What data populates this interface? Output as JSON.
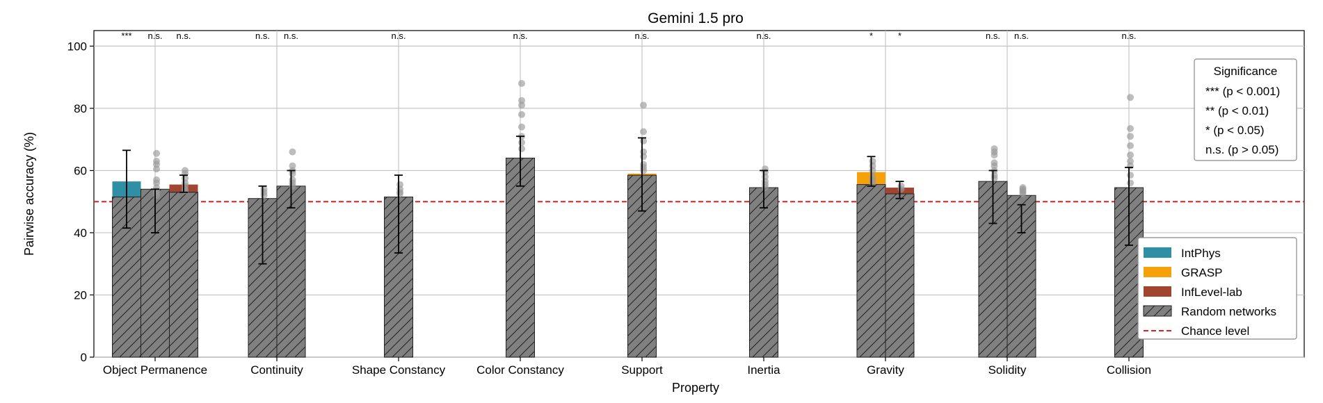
{
  "chart_data": {
    "type": "bar",
    "title": "Gemini 1.5 pro",
    "xlabel": "Property",
    "ylabel": "Pairwise accuracy (%)",
    "ylim": [
      0,
      105
    ],
    "yticks": [
      0,
      20,
      40,
      60,
      80,
      100
    ],
    "grid": true,
    "categories": [
      "Object Permanence",
      "Continuity",
      "Shape Constancy",
      "Color Constancy",
      "Support",
      "Inertia",
      "Gravity",
      "Solidity",
      "Collision"
    ],
    "chance_level": 50,
    "colors": {
      "IntPhys": "#2f8fa5",
      "GRASP": "#f5a20a",
      "InfLevel-lab": "#a0452f",
      "random": "#808080",
      "chance": "#e02020",
      "dots": "#9a9a9a",
      "grid": "#c4c4c4"
    },
    "legend": {
      "placement": "lower-right",
      "entries": [
        {
          "label": "IntPhys",
          "kind": "IntPhys"
        },
        {
          "label": "GRASP",
          "kind": "GRASP"
        },
        {
          "label": "InfLevel-lab",
          "kind": "InfLevel-lab"
        },
        {
          "label": "Random networks",
          "kind": "random"
        },
        {
          "label": "Chance level",
          "kind": "chance"
        }
      ]
    },
    "significance_box": {
      "placement": "upper-right",
      "title": "Significance",
      "lines": [
        "*** (p < 0.001)",
        "** (p < 0.01)",
        "* (p < 0.05)",
        "n.s. (p > 0.05)"
      ]
    },
    "groups": [
      {
        "category": "Object Permanence",
        "bars": [
          {
            "dataset": "IntPhys",
            "model": 56.5,
            "random_mean": 51.5,
            "err": [
              41.5,
              66.5
            ],
            "sig": "***",
            "dots": []
          },
          {
            "dataset": "IntPhys",
            "model": 54.0,
            "random_mean": 54.0,
            "err": [
              40.0,
              54.0
            ],
            "sig": "n.s.",
            "dots": [
              65.5,
              63.0,
              62.0,
              60.5,
              57.0,
              56.0,
              54.5,
              53.5,
              53.0,
              52.0
            ]
          },
          {
            "dataset": "InfLevel-lab",
            "model": 55.5,
            "random_mean": 53.0,
            "err": [
              53.0,
              58.5
            ],
            "sig": "n.s.",
            "dots": [
              60.0,
              59.0,
              57.5,
              56.0,
              55.0,
              54.0,
              53.5
            ]
          }
        ]
      },
      {
        "category": "Continuity",
        "bars": [
          {
            "dataset": "InfLevel-lab",
            "model": 51.0,
            "random_mean": 51.0,
            "err": [
              30.0,
              55.0
            ],
            "sig": "n.s.",
            "dots": [
              54.0,
              53.0,
              52.0
            ]
          },
          {
            "dataset": "InfLevel-lab",
            "model": 55.0,
            "random_mean": 55.0,
            "err": [
              48.0,
              60.0
            ],
            "sig": "n.s.",
            "dots": [
              66.0,
              61.5,
              60.0,
              59.0,
              57.0,
              56.0,
              55.0
            ]
          }
        ]
      },
      {
        "category": "Shape Constancy",
        "bars": [
          {
            "dataset": "InfLevel-lab",
            "model": 51.5,
            "random_mean": 51.5,
            "err": [
              33.5,
              58.5
            ],
            "sig": "n.s.",
            "dots": [
              55.5,
              54.0,
              53.0,
              52.5
            ]
          }
        ]
      },
      {
        "category": "Color Constancy",
        "bars": [
          {
            "dataset": "InfLevel-lab",
            "model": 64.0,
            "random_mean": 64.0,
            "err": [
              55.0,
              71.0
            ],
            "sig": "n.s.",
            "dots": [
              88.0,
              82.5,
              81.0,
              78.0,
              74.0,
              71.0,
              69.0,
              67.0
            ]
          }
        ]
      },
      {
        "category": "Support",
        "bars": [
          {
            "dataset": "GRASP",
            "model": 59.0,
            "random_mean": 58.5,
            "err": [
              47.0,
              70.5
            ],
            "sig": "n.s.",
            "dots": [
              81.0,
              72.5,
              69.5,
              66.0,
              64.5,
              62.0,
              61.0,
              60.0
            ]
          }
        ]
      },
      {
        "category": "Inertia",
        "bars": [
          {
            "dataset": "GRASP",
            "model": 54.5,
            "random_mean": 54.5,
            "err": [
              48.0,
              60.0
            ],
            "sig": "n.s.",
            "dots": [
              60.5,
              59.5,
              58.0,
              56.5,
              55.5,
              54.5
            ]
          }
        ]
      },
      {
        "category": "Gravity",
        "bars": [
          {
            "dataset": "GRASP",
            "model": 59.5,
            "random_mean": 55.5,
            "err": [
              55.0,
              64.5
            ],
            "sig": "*",
            "dots": [
              63.0,
              61.5,
              60.0,
              58.0,
              57.0,
              56.0
            ]
          },
          {
            "dataset": "InfLevel-lab",
            "model": 54.5,
            "random_mean": 52.5,
            "err": [
              51.0,
              56.5
            ],
            "sig": "*",
            "dots": [
              55.0,
              54.0
            ]
          }
        ]
      },
      {
        "category": "Solidity",
        "bars": [
          {
            "dataset": "InfLevel-lab",
            "model": 56.5,
            "random_mean": 56.5,
            "err": [
              43.0,
              60.0
            ],
            "sig": "n.s.",
            "dots": [
              67.0,
              66.0,
              65.0,
              62.5,
              61.5,
              60.0,
              58.5,
              57.5
            ]
          },
          {
            "dataset": "InfLevel-lab",
            "model": 52.0,
            "random_mean": 52.0,
            "err": [
              40.0,
              49.0
            ],
            "sig": "n.s.",
            "dots": [
              54.5,
              54.0,
              53.5,
              53.0,
              52.5
            ]
          }
        ]
      },
      {
        "category": "Collision",
        "bars": [
          {
            "dataset": "GRASP",
            "model": 54.5,
            "random_mean": 54.5,
            "err": [
              36.0,
              61.0
            ],
            "sig": "n.s.",
            "dots": [
              83.5,
              73.5,
              71.0,
              68.0,
              65.0,
              63.0,
              61.5,
              58.5,
              56.0
            ]
          }
        ]
      }
    ]
  }
}
